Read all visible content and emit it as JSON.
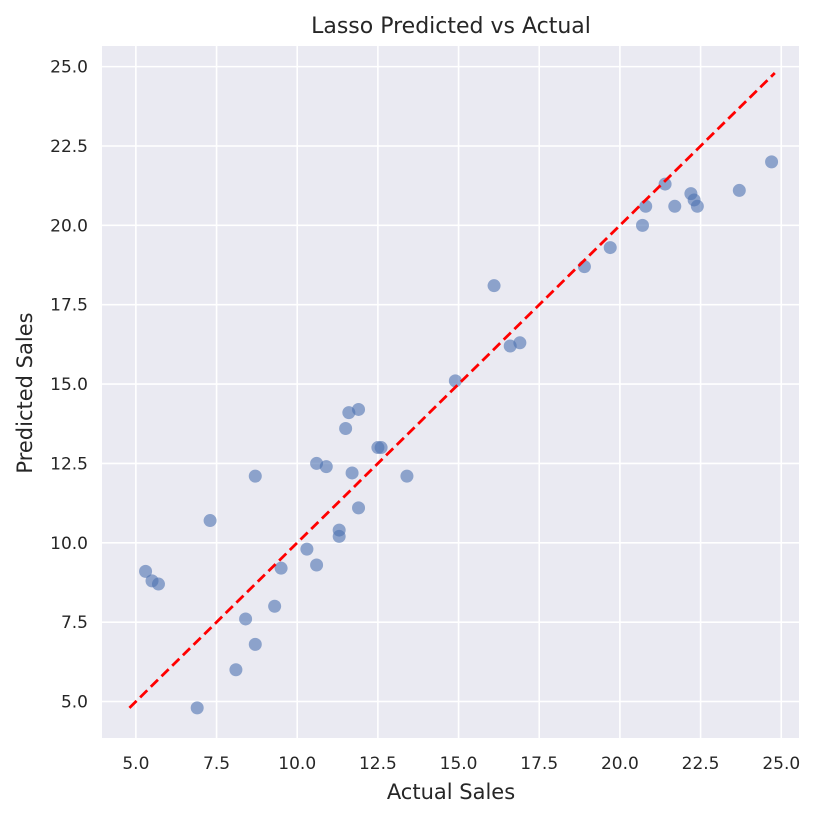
{
  "chart_data": {
    "type": "scatter",
    "title": "Lasso Predicted vs Actual",
    "xlabel": "Actual Sales",
    "ylabel": "Predicted Sales",
    "xlim": [
      3.95,
      25.55
    ],
    "ylim": [
      3.85,
      25.65
    ],
    "x_ticks": [
      "5.0",
      "7.5",
      "10.0",
      "12.5",
      "15.0",
      "17.5",
      "20.0",
      "22.5",
      "25.0"
    ],
    "y_ticks": [
      "5.0",
      "7.5",
      "10.0",
      "12.5",
      "15.0",
      "17.5",
      "20.0",
      "22.5",
      "25.0"
    ],
    "grid": true,
    "reference_line": {
      "style": "dashed",
      "color": "#ff0000",
      "from": [
        4.8,
        4.8
      ],
      "to": [
        24.8,
        24.8
      ]
    },
    "point_color": "#4c72b0",
    "background_color": "#eaeaf2",
    "points": [
      {
        "x": 5.3,
        "y": 9.1
      },
      {
        "x": 5.5,
        "y": 8.8
      },
      {
        "x": 5.7,
        "y": 8.7
      },
      {
        "x": 6.9,
        "y": 4.8
      },
      {
        "x": 7.3,
        "y": 10.7
      },
      {
        "x": 8.1,
        "y": 6.0
      },
      {
        "x": 8.4,
        "y": 7.6
      },
      {
        "x": 8.7,
        "y": 6.8
      },
      {
        "x": 8.7,
        "y": 12.1
      },
      {
        "x": 9.3,
        "y": 8.0
      },
      {
        "x": 9.5,
        "y": 9.2
      },
      {
        "x": 10.3,
        "y": 9.8
      },
      {
        "x": 10.6,
        "y": 9.3
      },
      {
        "x": 10.6,
        "y": 12.5
      },
      {
        "x": 10.9,
        "y": 12.4
      },
      {
        "x": 11.3,
        "y": 10.2
      },
      {
        "x": 11.3,
        "y": 10.4
      },
      {
        "x": 11.5,
        "y": 13.6
      },
      {
        "x": 11.6,
        "y": 14.1
      },
      {
        "x": 11.7,
        "y": 12.2
      },
      {
        "x": 11.9,
        "y": 11.1
      },
      {
        "x": 11.9,
        "y": 14.2
      },
      {
        "x": 12.5,
        "y": 13.0
      },
      {
        "x": 12.6,
        "y": 13.0
      },
      {
        "x": 13.4,
        "y": 12.1
      },
      {
        "x": 14.9,
        "y": 15.1
      },
      {
        "x": 16.1,
        "y": 18.1
      },
      {
        "x": 16.6,
        "y": 16.2
      },
      {
        "x": 16.9,
        "y": 16.3
      },
      {
        "x": 18.9,
        "y": 18.7
      },
      {
        "x": 19.7,
        "y": 19.3
      },
      {
        "x": 20.7,
        "y": 20.0
      },
      {
        "x": 20.8,
        "y": 20.6
      },
      {
        "x": 21.4,
        "y": 21.3
      },
      {
        "x": 21.7,
        "y": 20.6
      },
      {
        "x": 22.2,
        "y": 21.0
      },
      {
        "x": 22.3,
        "y": 20.8
      },
      {
        "x": 22.4,
        "y": 20.6
      },
      {
        "x": 23.7,
        "y": 21.1
      },
      {
        "x": 24.7,
        "y": 22.0
      }
    ]
  }
}
